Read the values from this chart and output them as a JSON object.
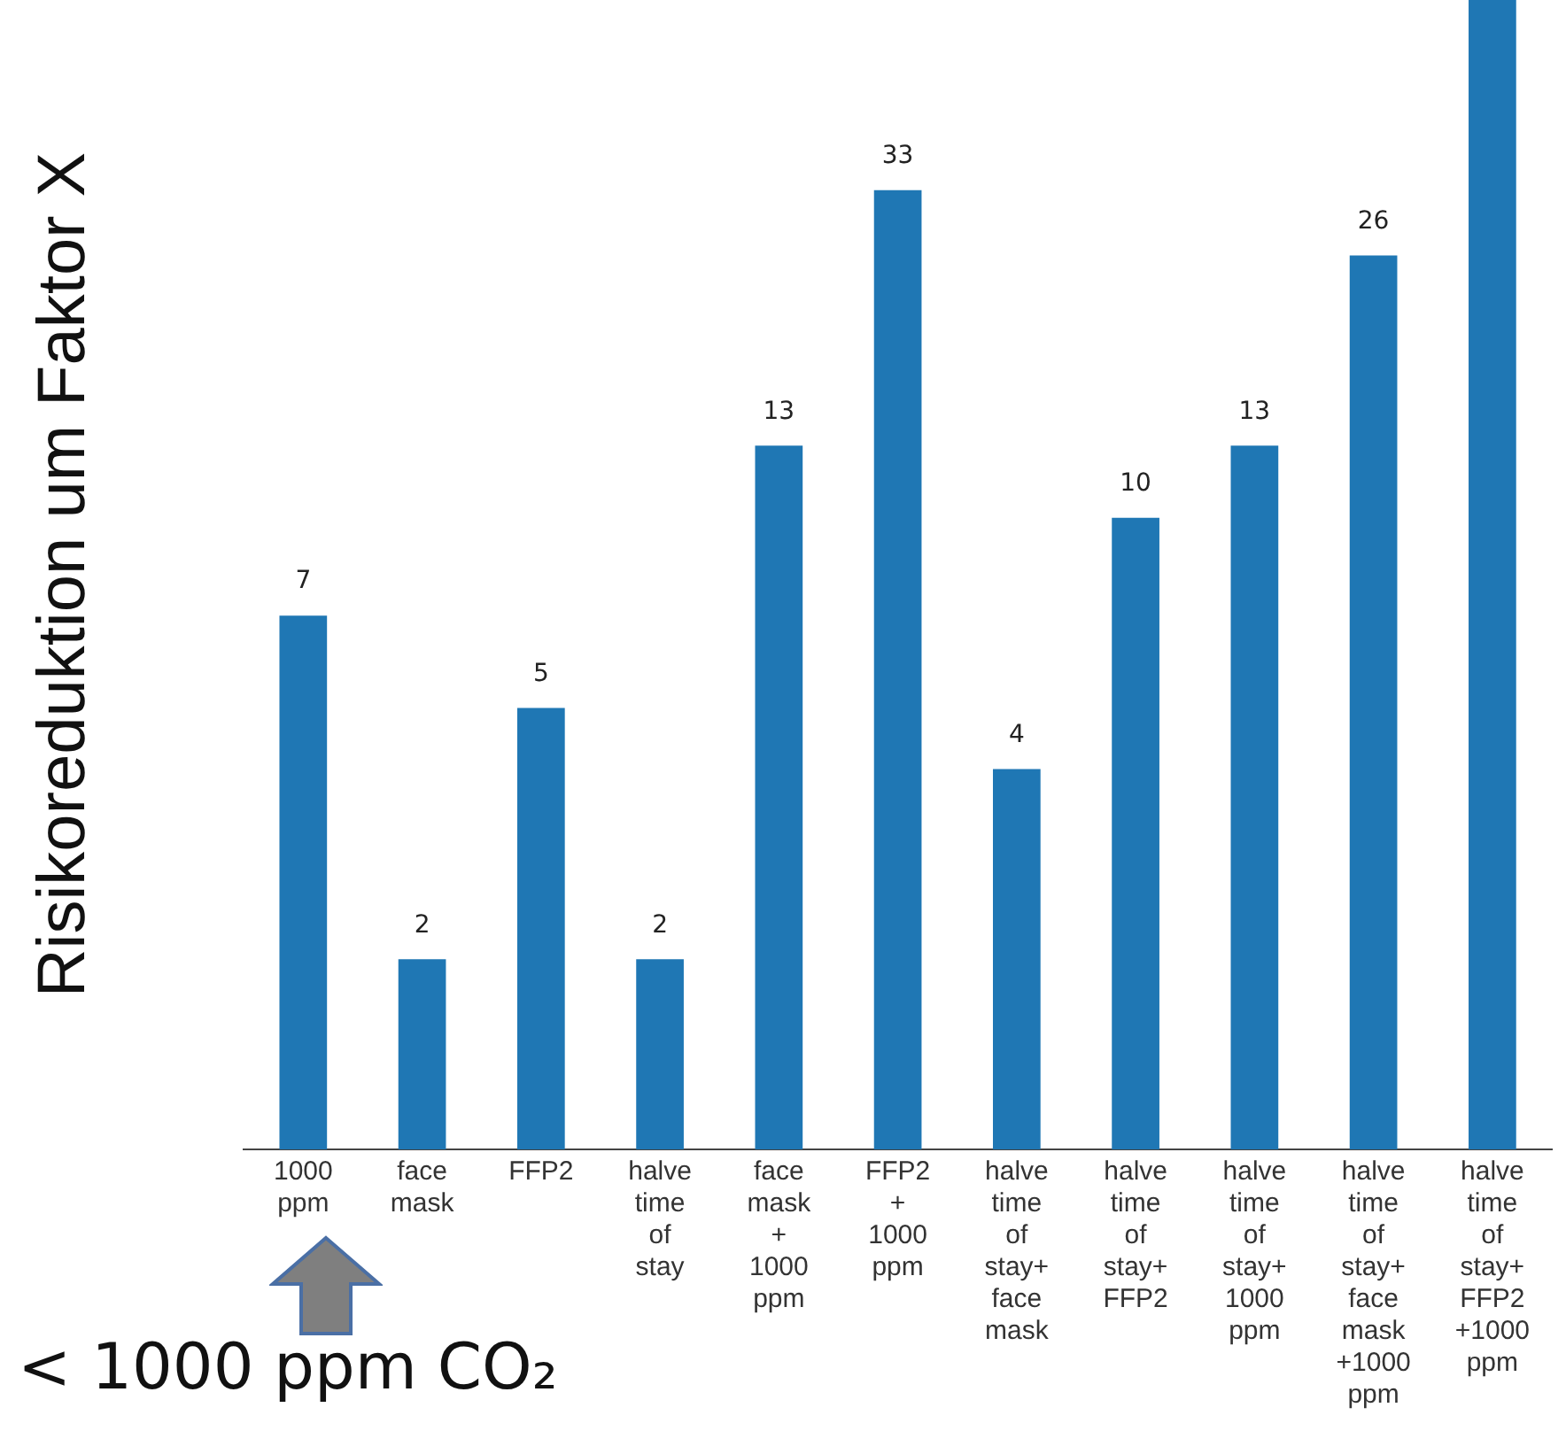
{
  "chart_data": {
    "type": "bar",
    "ylabel": "Risikoreduktion um Faktor X",
    "categories": [
      "1000 ppm",
      "face mask",
      "FFP2",
      "halve time of stay",
      "face mask + 1000 ppm",
      "FFP2 + 1000 ppm",
      "halve time of stay+ face mask",
      "halve time of stay+ FFP2",
      "halve time of stay+ 1000 ppm",
      "halve time of stay+ face mask +1000 ppm",
      "halve time of stay+ FFP2 +1000 ppm"
    ],
    "values": [
      7,
      2,
      5,
      2,
      13,
      33,
      4,
      10,
      13,
      26,
      66
    ],
    "value_labels": [
      "7",
      "2",
      "5",
      "2",
      "13",
      "33",
      "4",
      "10",
      "13",
      "26",
      null
    ],
    "color": "#1f77b4",
    "log": true,
    "ylim": [
      1,
      66
    ],
    "grid": false,
    "legend": false,
    "annotations": [
      "< 1000 ppm CO₂"
    ]
  }
}
